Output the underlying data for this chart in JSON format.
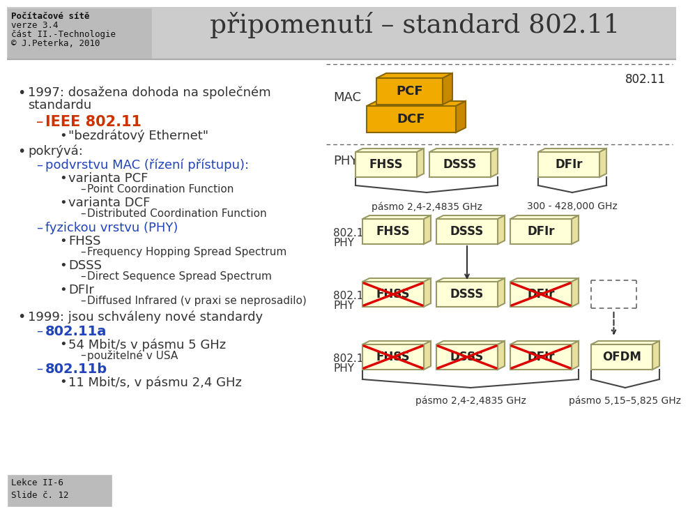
{
  "title": "připomenutí – standard 802.11",
  "header_lines": [
    "Počítačové sítě",
    "verze 3.4",
    "část II.-Technologie",
    "© J.Peterka, 2010"
  ],
  "footer_lines": [
    "Lekce II-6",
    "Slide č. 12"
  ],
  "bg_color": "#ffffff",
  "header_bg": "#cccccc",
  "header_box_bg": "#bbbbbb",
  "pcf_color": "#f0aa00",
  "dcf_color": "#f0aa00",
  "pcf_right_color": "#c88800",
  "dcf_right_color": "#c88800",
  "phy_face_color": "#ffffd8",
  "phy_right_color": "#e8e0a0",
  "phy_edge_color": "#999966",
  "label_802_11": "802.11",
  "mac_label": "MAC",
  "phy_label": "PHY",
  "band1_label": "pásmo 2,4-2,4835 GHz",
  "band2_label": "300 - 428,000 GHz",
  "band_bottom1": "pásmo 2,4-2,4835 GHz",
  "band_bottom2": "pásmo 5,15–5,825 GHz",
  "left_items": [
    [
      15,
      606,
      "•",
      "#333333",
      14,
      false
    ],
    [
      30,
      606,
      "1997: dosažena dohoda na společném",
      "#333333",
      13,
      false
    ],
    [
      30,
      588,
      "standardu",
      "#333333",
      13,
      false
    ],
    [
      42,
      565,
      "–",
      "#cc3300",
      15,
      false
    ],
    [
      55,
      565,
      "IEEE 802.11",
      "#cc3300",
      15,
      true
    ],
    [
      75,
      544,
      "•",
      "#333333",
      13,
      false
    ],
    [
      88,
      544,
      "\"bezdrátový Ethernet\"",
      "#333333",
      13,
      false
    ],
    [
      15,
      522,
      "•",
      "#333333",
      14,
      false
    ],
    [
      30,
      522,
      "pokrývá:",
      "#333333",
      13,
      false
    ],
    [
      42,
      502,
      "–",
      "#2244bb",
      13,
      false
    ],
    [
      55,
      502,
      "podvrstvu MAC (řízení přístupu):",
      "#2244bb",
      13,
      false
    ],
    [
      75,
      483,
      "•",
      "#333333",
      13,
      false
    ],
    [
      88,
      483,
      "varianta PCF",
      "#333333",
      13,
      false
    ],
    [
      105,
      466,
      "–",
      "#333333",
      11,
      false
    ],
    [
      115,
      466,
      "Point Coordination Function",
      "#333333",
      11,
      false
    ],
    [
      75,
      448,
      "•",
      "#333333",
      13,
      false
    ],
    [
      88,
      448,
      "varianta DCF",
      "#333333",
      13,
      false
    ],
    [
      105,
      431,
      "–",
      "#333333",
      11,
      false
    ],
    [
      115,
      431,
      "Distributed Coordination Function",
      "#333333",
      11,
      false
    ],
    [
      42,
      412,
      "–",
      "#2244bb",
      13,
      false
    ],
    [
      55,
      412,
      "fyzickou vrstvu (PHY)",
      "#2244bb",
      13,
      false
    ],
    [
      75,
      393,
      "•",
      "#333333",
      13,
      false
    ],
    [
      88,
      393,
      "FHSS",
      "#333333",
      13,
      false
    ],
    [
      105,
      376,
      "–",
      "#333333",
      11,
      false
    ],
    [
      115,
      376,
      "Frequency Hopping Spread Spectrum",
      "#333333",
      11,
      false
    ],
    [
      75,
      358,
      "•",
      "#333333",
      13,
      false
    ],
    [
      88,
      358,
      "DSSS",
      "#333333",
      13,
      false
    ],
    [
      105,
      341,
      "–",
      "#333333",
      11,
      false
    ],
    [
      115,
      341,
      "Direct Sequence Spread Spectrum",
      "#333333",
      11,
      false
    ],
    [
      75,
      323,
      "•",
      "#333333",
      13,
      false
    ],
    [
      88,
      323,
      "DFIr",
      "#333333",
      13,
      false
    ],
    [
      105,
      306,
      "–",
      "#333333",
      11,
      false
    ],
    [
      115,
      306,
      "Diffused Infrared (v praxi se neprosadilo)",
      "#333333",
      11,
      false
    ],
    [
      15,
      285,
      "•",
      "#333333",
      14,
      false
    ],
    [
      30,
      285,
      "1999: jsou schváleny nové standardy",
      "#333333",
      13,
      false
    ],
    [
      42,
      264,
      "–",
      "#2244bb",
      13,
      false
    ],
    [
      55,
      264,
      "802.11a",
      "#2244bb",
      14,
      true
    ],
    [
      75,
      245,
      "•",
      "#333333",
      13,
      false
    ],
    [
      88,
      245,
      "54 Mbit/s v pásmu 5 GHz",
      "#333333",
      13,
      false
    ],
    [
      105,
      228,
      "–",
      "#333333",
      11,
      false
    ],
    [
      115,
      228,
      "použitelné v USA",
      "#333333",
      11,
      false
    ],
    [
      42,
      210,
      "–",
      "#2244bb",
      13,
      false
    ],
    [
      55,
      210,
      "802.11b",
      "#2244bb",
      14,
      true
    ],
    [
      75,
      191,
      "•",
      "#333333",
      13,
      false
    ],
    [
      88,
      191,
      "11 Mbit/s, v pásmu 2,4 GHz",
      "#333333",
      13,
      false
    ]
  ]
}
